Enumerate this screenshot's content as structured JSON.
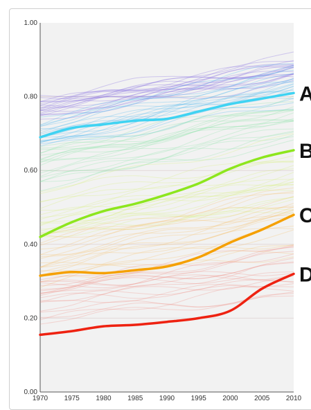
{
  "chart_data": {
    "type": "line",
    "title": "",
    "xlabel": "",
    "ylabel": "",
    "xlim": [
      1970,
      2010
    ],
    "ylim": [
      0,
      1
    ],
    "x_ticks": [
      "1970",
      "1975",
      "1980",
      "1985",
      "1990",
      "1995",
      "2000",
      "2005",
      "2010"
    ],
    "y_ticks": [
      "0.00",
      "0.20",
      "0.40",
      "0.60",
      "0.80",
      "1.00"
    ],
    "grid": "horizontal",
    "x": [
      1970,
      1975,
      1980,
      1985,
      1990,
      1995,
      2000,
      2005,
      2010
    ],
    "series": [
      {
        "name": "A",
        "color": "#3fd3f2",
        "values": [
          0.69,
          0.715,
          0.725,
          0.735,
          0.74,
          0.76,
          0.78,
          0.795,
          0.81
        ]
      },
      {
        "name": "B",
        "color": "#8de61e",
        "values": [
          0.42,
          0.46,
          0.49,
          0.51,
          0.535,
          0.565,
          0.605,
          0.635,
          0.655
        ]
      },
      {
        "name": "C",
        "color": "#f5a000",
        "values": [
          0.315,
          0.325,
          0.322,
          0.33,
          0.34,
          0.365,
          0.405,
          0.44,
          0.48
        ]
      },
      {
        "name": "D",
        "color": "#ee2211",
        "values": [
          0.155,
          0.165,
          0.178,
          0.182,
          0.19,
          0.2,
          0.22,
          0.28,
          0.32
        ]
      }
    ],
    "background_band_colors": [
      "#7f66e0",
      "#4fb7ee",
      "#8be3a8",
      "#d7ee7c",
      "#f6c06c",
      "#f08f86"
    ]
  }
}
